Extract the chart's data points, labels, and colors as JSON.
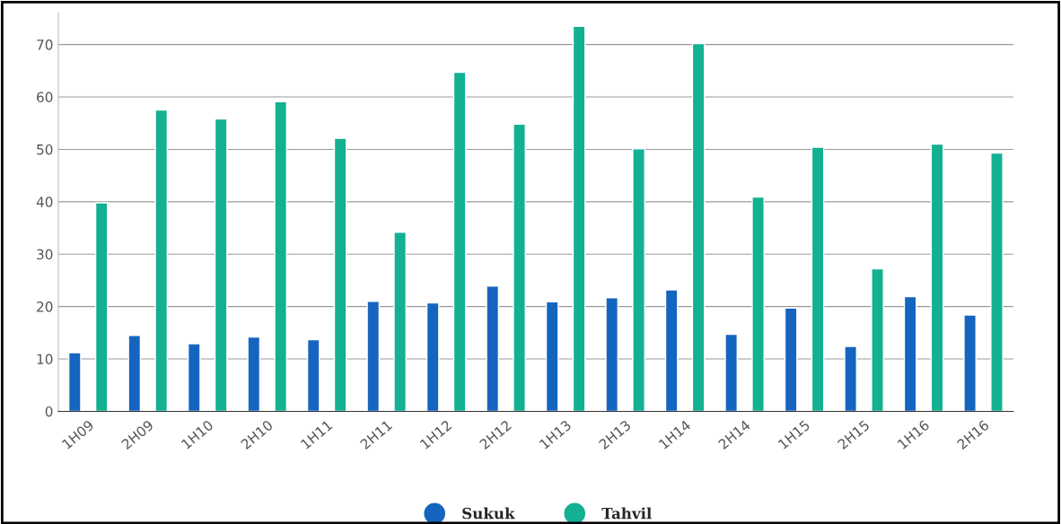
{
  "chart_data": {
    "type": "bar",
    "categories": [
      "1H09",
      "2H09",
      "1H10",
      "2H10",
      "1H11",
      "2H11",
      "1H12",
      "2H12",
      "1H13",
      "2H13",
      "1H14",
      "2H14",
      "1H15",
      "2H15",
      "1H16",
      "2H16"
    ],
    "series": [
      {
        "name": "Sukuk",
        "color": "#1565c0",
        "values": [
          11.2,
          14.5,
          12.9,
          14.2,
          13.7,
          21.0,
          20.7,
          23.9,
          20.9,
          21.7,
          23.2,
          14.7,
          19.7,
          12.4,
          21.9,
          18.4
        ]
      },
      {
        "name": "Tahvil",
        "color": "#13b092",
        "values": [
          39.8,
          57.5,
          55.8,
          59.1,
          52.1,
          34.2,
          64.7,
          54.8,
          73.5,
          50.1,
          70.2,
          40.9,
          50.4,
          27.2,
          51.0,
          49.3
        ]
      }
    ],
    "ylim": [
      0,
      76
    ],
    "yticks": [
      0,
      10,
      20,
      30,
      40,
      50,
      60,
      70
    ],
    "grid": "y",
    "legend": "bottom"
  }
}
